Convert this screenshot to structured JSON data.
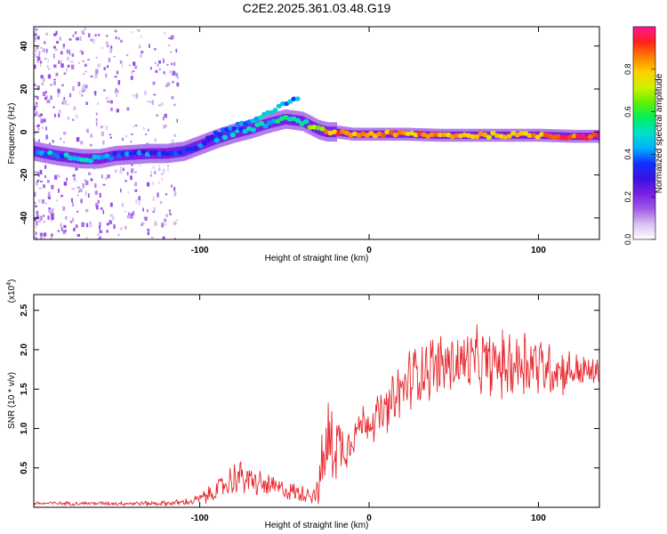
{
  "title": "C2E2.2025.361.03.48.G19",
  "colors": {
    "snr_line": "#e8282e",
    "colormap": [
      "#ffffff",
      "#d9c2f2",
      "#a05be6",
      "#7a1ee6",
      "#3a12e0",
      "#1030ff",
      "#00b0ff",
      "#00e0c8",
      "#00f060",
      "#60f000",
      "#d0f000",
      "#ffd000",
      "#ff8000",
      "#ff2020",
      "#ff1493"
    ]
  },
  "chart_data": [
    {
      "type": "heatmap",
      "name": "spectrogram",
      "xlabel": "Height of straight line (km)",
      "ylabel": "Frequency (Hz)",
      "xlim": [
        -198,
        136
      ],
      "ylim": [
        -50,
        49
      ],
      "xticks": [
        -100,
        0,
        100
      ],
      "yticks": [
        -40,
        -20,
        0,
        20,
        40
      ],
      "xtick_labels": [
        "-100",
        "0",
        "100"
      ],
      "ytick_labels": [
        "-40",
        "-20",
        "0",
        "20",
        "40"
      ],
      "track": {
        "x": [
          -198,
          -185,
          -170,
          -160,
          -150,
          -140,
          -130,
          -120,
          -110,
          -100,
          -90,
          -80,
          -70,
          -60,
          -50,
          -40,
          -35,
          -30,
          -25,
          -20,
          -10,
          0,
          20,
          40,
          60,
          80,
          100,
          120,
          136
        ],
        "y": [
          -9,
          -11,
          -12.5,
          -12.5,
          -11,
          -10.5,
          -10,
          -10,
          -9,
          -6,
          -3,
          -0.5,
          1.5,
          4,
          6,
          5,
          3,
          1,
          0,
          0,
          -1,
          -1,
          -1,
          -1.5,
          -1.5,
          -1.5,
          -1.5,
          -2,
          -2
        ],
        "amplitude": [
          0.4,
          0.42,
          0.45,
          0.43,
          0.4,
          0.38,
          0.36,
          0.35,
          0.33,
          0.35,
          0.4,
          0.42,
          0.45,
          0.48,
          0.5,
          0.55,
          0.6,
          0.7,
          0.8,
          0.85,
          0.75,
          0.8,
          0.85,
          0.8,
          0.78,
          0.82,
          0.85,
          0.92,
          0.95
        ]
      },
      "secondary_track": {
        "x": [
          -95,
          -80,
          -70,
          -60,
          -50,
          -40
        ],
        "y": [
          -2,
          2,
          5,
          9,
          13,
          17
        ],
        "amplitude": [
          0.3,
          0.35,
          0.4,
          0.45,
          0.45,
          0.4
        ]
      },
      "colorbar": {
        "label": "Normalized spectral amplitude",
        "range": [
          0,
          1
        ],
        "ticks": [
          0.0,
          0.2,
          0.4,
          0.6,
          0.8
        ],
        "tick_labels": [
          "0.0",
          "0.2",
          "0.4",
          "0.6",
          "0.8"
        ]
      }
    },
    {
      "type": "line",
      "name": "snr",
      "xlabel": "Height of straight line (km)",
      "ylabel": "SNR (10 * v/v)",
      "multiplier_label": "(x10",
      "multiplier_exponent": "4",
      "xlim": [
        -198,
        136
      ],
      "ylim": [
        0,
        27000
      ],
      "xticks": [
        -100,
        0,
        100
      ],
      "yticks": [
        5000,
        10000,
        15000,
        20000,
        25000
      ],
      "xtick_labels": [
        "-100",
        "0",
        "100"
      ],
      "ytick_labels": [
        "0.5",
        "1.0",
        "1.5",
        "2.0",
        "2.5"
      ],
      "envelope": {
        "x": [
          -198,
          -160,
          -120,
          -105,
          -95,
          -85,
          -78,
          -72,
          -65,
          -58,
          -50,
          -42,
          -35,
          -30,
          -27,
          -24,
          -20,
          -15,
          -10,
          -5,
          0,
          5,
          10,
          15,
          20,
          25,
          30,
          40,
          50,
          60,
          70,
          80,
          90,
          95,
          100,
          110,
          120,
          130,
          136
        ],
        "y": [
          500,
          500,
          500,
          700,
          1500,
          2800,
          4000,
          3500,
          3000,
          2600,
          2200,
          1800,
          1800,
          2000,
          6000,
          8000,
          8500,
          7500,
          9000,
          10500,
          11000,
          11500,
          12000,
          13500,
          15000,
          16500,
          17500,
          18000,
          18200,
          18500,
          18200,
          18000,
          18500,
          18800,
          18000,
          17500,
          17300,
          17200,
          17000
        ],
        "spread": [
          300,
          300,
          400,
          600,
          1200,
          2000,
          2800,
          2400,
          2000,
          1800,
          1500,
          1400,
          1500,
          2000,
          6000,
          8000,
          6000,
          4000,
          3000,
          3000,
          3000,
          3500,
          4000,
          4500,
          5000,
          5000,
          5000,
          5000,
          5000,
          5000,
          5000,
          5000,
          6000,
          6000,
          5000,
          4000,
          3000,
          2500,
          2000
        ]
      }
    }
  ]
}
